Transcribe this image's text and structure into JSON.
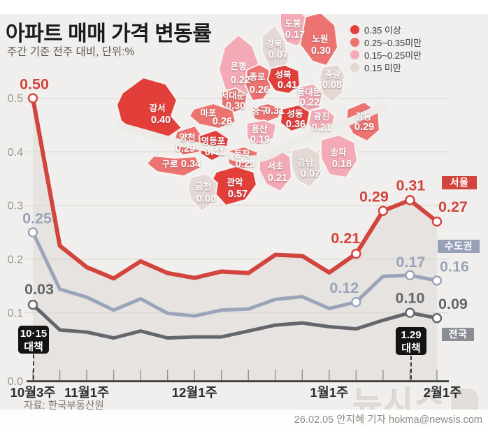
{
  "header": {
    "title": "아파트 매매 가격 변동률",
    "subtitle": "주간 기준 전주 대비, 단위:%"
  },
  "legend": {
    "items": [
      {
        "label": "0.35 이상",
        "color": "#e23e3a"
      },
      {
        "label": "0.25~0.35미만",
        "color": "#ec7370"
      },
      {
        "label": "0.15~0.25미만",
        "color": "#f3aab6"
      },
      {
        "label": "0.15 미만",
        "color": "#e3d8d4"
      }
    ]
  },
  "map": {
    "region": "서울",
    "river": "한강",
    "districts": [
      {
        "name": "도봉",
        "value": 0.17
      },
      {
        "name": "강북",
        "value": 0.07
      },
      {
        "name": "노원",
        "value": 0.3
      },
      {
        "name": "은평",
        "value": 0.22
      },
      {
        "name": "종로",
        "value": 0.26
      },
      {
        "name": "성북",
        "value": 0.41
      },
      {
        "name": "중랑",
        "value": 0.08
      },
      {
        "name": "동대문",
        "value": 0.22
      },
      {
        "name": "서대문",
        "value": 0.3
      },
      {
        "name": "마포",
        "value": 0.26
      },
      {
        "name": "중구",
        "value": 0.31
      },
      {
        "name": "성동",
        "value": 0.36
      },
      {
        "name": "광진",
        "value": 0.21
      },
      {
        "name": "강동",
        "value": 0.29
      },
      {
        "name": "용산",
        "value": 0.19
      },
      {
        "name": "강서",
        "value": 0.4
      },
      {
        "name": "양천",
        "value": 0.29
      },
      {
        "name": "영등포",
        "value": 0.41
      },
      {
        "name": "구로",
        "value": 0.34
      },
      {
        "name": "동작",
        "value": 0.29
      },
      {
        "name": "관악",
        "value": 0.57
      },
      {
        "name": "금천",
        "value": 0.08
      },
      {
        "name": "서초",
        "value": 0.21
      },
      {
        "name": "강남",
        "value": 0.07
      },
      {
        "name": "송파",
        "value": 0.18
      }
    ]
  },
  "chart_data": {
    "type": "line",
    "title": "아파트 매매 가격 변동률",
    "unit": "%",
    "x": [
      "10월3주",
      "10월4주",
      "11월1주",
      "11월2주",
      "11월3주",
      "11월4주",
      "12월1주",
      "12월2주",
      "12월3주",
      "12월4주",
      "12월5주",
      "1월1주",
      "1월2주",
      "1월3주",
      "1월4주",
      "2월1주"
    ],
    "x_shown_label_indices": [
      0,
      2,
      6,
      11,
      15
    ],
    "x_axis_labels": [
      "10월3주",
      "11월1주",
      "12월1주",
      "1월1주",
      "2월1주"
    ],
    "ylim": [
      0,
      0.5
    ],
    "ytick_labels": [
      "0.0",
      "0.1",
      "0.2",
      "0.3",
      "0.4",
      "0.5"
    ],
    "grid": true,
    "series": [
      {
        "name": "서울",
        "color": "#d2453e",
        "tag_bg": "#d2453e",
        "values": [
          0.5,
          0.225,
          0.185,
          0.164,
          0.196,
          0.174,
          0.165,
          0.177,
          0.174,
          0.208,
          0.206,
          0.175,
          0.21,
          0.29,
          0.31,
          0.27
        ],
        "point_labels": {
          "0": "0.50",
          "12": "0.21",
          "13": "0.29",
          "14": "0.31",
          "15": "0.27"
        }
      },
      {
        "name": "수도권",
        "color": "#9aa4b9",
        "tag_bg": "#97a1b6",
        "values": [
          0.25,
          0.144,
          0.129,
          0.105,
          0.126,
          0.099,
          0.094,
          0.105,
          0.107,
          0.125,
          0.13,
          0.108,
          0.12,
          0.168,
          0.17,
          0.16
        ],
        "point_labels": {
          "0": "0.25",
          "12": "0.12",
          "14": "0.17",
          "15": "0.16"
        }
      },
      {
        "name": "전국",
        "color": "#63666b",
        "tag_bg": "#8a8e94",
        "values": [
          0.03,
          0.068,
          0.064,
          0.053,
          0.066,
          0.053,
          0.055,
          0.055,
          0.066,
          0.077,
          0.081,
          0.074,
          0.07,
          0.086,
          0.1,
          0.09
        ],
        "display_values": [
          0.115,
          0.068,
          0.064,
          0.053,
          0.066,
          0.053,
          0.055,
          0.055,
          0.066,
          0.077,
          0.081,
          0.074,
          0.07,
          0.086,
          0.1,
          0.09
        ],
        "point_labels": {
          "0": "0.03",
          "14": "0.10",
          "15": "0.09"
        }
      }
    ],
    "annotations": [
      {
        "line1": "10·15",
        "line2": "대책",
        "at": "10월3주"
      },
      {
        "line1": "1.29",
        "line2": "대책",
        "at": "1월4주"
      }
    ]
  },
  "footer": {
    "source": "자료: 한국부동산원",
    "credit": "26.02.05 안지혜 기자 hokma@newsis.com",
    "watermark": "뉴시스"
  }
}
